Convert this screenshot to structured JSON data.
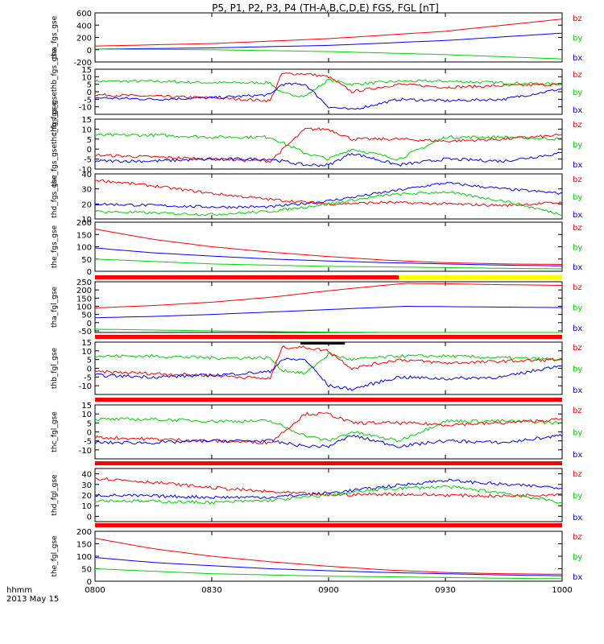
{
  "chart_data": {
    "type": "line",
    "title": "P5, P1, P2, P3, P4 (TH-A,B,C,D,E) FGS, FGL [nT]",
    "x_tick_labels": [
      "0800",
      "0830",
      "0900",
      "0930",
      "1000"
    ],
    "x_ticks_hours": [
      8.0,
      8.5,
      9.0,
      9.5,
      10.0
    ],
    "xlim_hours": [
      8.0,
      10.0
    ],
    "time_label": "hhmm",
    "date_label": "2013 May 15",
    "colors": {
      "bx": "#0000ff",
      "by": "#00d400",
      "bz": "#ff0000"
    },
    "component_labels": [
      "bz",
      "by",
      "bx"
    ],
    "panels": [
      {
        "ylabel": "tha_fgs_gse",
        "ylim": [
          -200,
          600
        ],
        "yticks": [
          -200,
          0,
          200,
          400,
          600
        ],
        "series": [
          {
            "name": "bz",
            "x": [
              8.0,
              8.5,
              9.0,
              9.5,
              10.0
            ],
            "values": [
              60,
              100,
              180,
              300,
              500
            ]
          },
          {
            "name": "bx",
            "x": [
              8.0,
              8.5,
              9.0,
              9.5,
              10.0
            ],
            "values": [
              10,
              30,
              70,
              150,
              270
            ]
          },
          {
            "name": "by",
            "x": [
              8.0,
              8.5,
              9.0,
              9.5,
              10.0
            ],
            "values": [
              10,
              0,
              -30,
              -80,
              -150
            ]
          }
        ]
      },
      {
        "ylabel": "thb_fgs_gsethb_fgs_gse",
        "ylim": [
          -15,
          15
        ],
        "yticks": [
          -10,
          -5,
          0,
          5,
          10,
          15
        ],
        "series": [
          {
            "name": "by",
            "x": [
              8.0,
              8.25,
              8.5,
              8.75,
              8.8,
              8.9,
              9.0,
              9.1,
              9.3,
              9.5,
              9.75,
              10.0
            ],
            "values": [
              7,
              7,
              6,
              6,
              -1,
              -3,
              8,
              5,
              7,
              7,
              6,
              5
            ]
          },
          {
            "name": "bz",
            "x": [
              8.0,
              8.25,
              8.5,
              8.75,
              8.8,
              8.9,
              9.0,
              9.1,
              9.3,
              9.5,
              9.75,
              10.0
            ],
            "values": [
              -2,
              -3,
              -4,
              -6,
              12,
              12,
              10,
              0,
              5,
              3,
              4,
              5
            ]
          },
          {
            "name": "bx",
            "x": [
              8.0,
              8.25,
              8.5,
              8.75,
              8.8,
              8.9,
              9.0,
              9.1,
              9.3,
              9.5,
              9.75,
              10.0
            ],
            "values": [
              -4,
              -5,
              -4,
              -2,
              5,
              5,
              -10,
              -12,
              -5,
              -6,
              -5,
              2
            ]
          }
        ]
      },
      {
        "ylabel": "thc_fgs_gsethc_fgs_gse",
        "ylim": [
          -10,
          15
        ],
        "yticks": [
          -10,
          -5,
          0,
          5,
          10,
          15
        ],
        "series": [
          {
            "name": "by",
            "x": [
              8.0,
              8.25,
              8.5,
              8.75,
              8.9,
              9.0,
              9.1,
              9.3,
              9.5,
              9.75,
              10.0
            ],
            "values": [
              7,
              7,
              6,
              6,
              -2,
              -5,
              0,
              -5,
              6,
              6,
              5
            ]
          },
          {
            "name": "bz",
            "x": [
              8.0,
              8.25,
              8.5,
              8.75,
              8.9,
              9.0,
              9.1,
              9.3,
              9.5,
              9.75,
              10.0
            ],
            "values": [
              -3,
              -4,
              -5,
              -6,
              10,
              10,
              5,
              5,
              4,
              5,
              7
            ]
          },
          {
            "name": "bx",
            "x": [
              8.0,
              8.25,
              8.5,
              8.75,
              8.9,
              9.0,
              9.1,
              9.3,
              9.5,
              9.75,
              10.0
            ],
            "values": [
              -6,
              -6,
              -5,
              -5,
              -8,
              -8,
              -2,
              -8,
              -5,
              -6,
              -2
            ]
          }
        ]
      },
      {
        "ylabel": "thd_fgs_gse",
        "ylim": [
          10,
          40
        ],
        "yticks": [
          10,
          20,
          30,
          40
        ],
        "series": [
          {
            "name": "bx",
            "x": [
              8.0,
              8.25,
              8.5,
              8.75,
              9.0,
              9.25,
              9.5,
              9.75,
              10.0
            ],
            "values": [
              20,
              19,
              18,
              18,
              22,
              28,
              34,
              30,
              27
            ]
          },
          {
            "name": "bz",
            "x": [
              8.0,
              8.25,
              8.5,
              8.75,
              9.0,
              9.25,
              9.5,
              9.75,
              10.0
            ],
            "values": [
              36,
              32,
              27,
              23,
              20,
              21,
              20,
              19,
              21
            ]
          },
          {
            "name": "by",
            "x": [
              8.0,
              8.25,
              8.5,
              8.75,
              9.0,
              9.25,
              9.5,
              9.75,
              10.0
            ],
            "values": [
              15,
              14,
              13,
              15,
              20,
              26,
              28,
              22,
              13
            ]
          }
        ]
      },
      {
        "ylabel": "the_fgs_gse",
        "ylim": [
          0,
          200
        ],
        "yticks": [
          0,
          50,
          100,
          150,
          200
        ],
        "series": [
          {
            "name": "bz",
            "x": [
              8.0,
              8.25,
              8.5,
              8.75,
              9.0,
              9.25,
              9.5,
              9.75,
              10.0
            ],
            "values": [
              172,
              130,
              100,
              78,
              60,
              45,
              35,
              30,
              28
            ]
          },
          {
            "name": "bx",
            "x": [
              8.0,
              8.25,
              8.5,
              8.75,
              9.0,
              9.25,
              9.5,
              9.75,
              10.0
            ],
            "values": [
              95,
              75,
              62,
              50,
              42,
              35,
              30,
              25,
              22
            ]
          },
          {
            "name": "by",
            "x": [
              8.0,
              8.25,
              8.5,
              8.75,
              9.0,
              9.25,
              9.5,
              9.75,
              10.0
            ],
            "values": [
              50,
              40,
              30,
              25,
              20,
              18,
              15,
              12,
              10
            ]
          }
        ]
      },
      {
        "ylabel": "tha_fgl_gse",
        "ylim": [
          -60,
          250
        ],
        "yticks": [
          -50,
          0,
          50,
          100,
          150,
          200,
          250
        ],
        "series": [
          {
            "name": "bz",
            "x": [
              8.0,
              8.25,
              8.5,
              8.75,
              9.0,
              9.25,
              9.33,
              9.5,
              9.75,
              10.0
            ],
            "values": [
              90,
              105,
              125,
              155,
              195,
              230,
              240,
              238,
              232,
              228
            ]
          },
          {
            "name": "bx",
            "x": [
              8.0,
              8.25,
              8.5,
              8.75,
              9.0,
              9.25,
              9.33,
              9.5,
              9.75,
              10.0
            ],
            "values": [
              30,
              38,
              50,
              65,
              80,
              95,
              100,
              98,
              95,
              92
            ]
          },
          {
            "name": "by",
            "x": [
              8.0,
              8.25,
              8.5,
              8.75,
              9.0,
              9.25,
              9.33,
              9.5,
              9.75,
              10.0
            ],
            "values": [
              -40,
              -45,
              -50,
              -55,
              -58,
              -60,
              -60,
              -60,
              -60,
              -60
            ]
          }
        ]
      },
      {
        "ylabel": "thb_fgl_gse",
        "ylim": [
          -15,
          15
        ],
        "yticks": [
          -10,
          -5,
          0,
          5,
          10,
          15
        ],
        "series": [
          {
            "name": "by",
            "x": [
              8.0,
              8.25,
              8.5,
              8.75,
              8.8,
              8.9,
              9.0,
              9.1,
              9.3,
              9.5,
              9.75,
              10.0
            ],
            "values": [
              7,
              7,
              6,
              6,
              -1,
              -3,
              8,
              5,
              7,
              7,
              6,
              5
            ]
          },
          {
            "name": "bz",
            "x": [
              8.0,
              8.25,
              8.5,
              8.75,
              8.8,
              8.9,
              9.0,
              9.1,
              9.3,
              9.5,
              9.75,
              10.0
            ],
            "values": [
              -2,
              -3,
              -4,
              -6,
              12,
              12,
              10,
              0,
              5,
              3,
              4,
              5
            ]
          },
          {
            "name": "bx",
            "x": [
              8.0,
              8.25,
              8.5,
              8.75,
              8.8,
              8.9,
              9.0,
              9.1,
              9.3,
              9.5,
              9.75,
              10.0
            ],
            "values": [
              -4,
              -5,
              -4,
              -2,
              5,
              5,
              -10,
              -12,
              -5,
              -6,
              -5,
              2
            ]
          }
        ]
      },
      {
        "ylabel": "thc_fgl_gse",
        "ylim": [
          -15,
          15
        ],
        "yticks": [
          -10,
          -5,
          0,
          5,
          10,
          15
        ],
        "series": [
          {
            "name": "by",
            "x": [
              8.0,
              8.25,
              8.5,
              8.75,
              8.9,
              9.0,
              9.1,
              9.3,
              9.5,
              9.75,
              10.0
            ],
            "values": [
              7,
              7,
              6,
              6,
              -2,
              -5,
              0,
              -5,
              6,
              6,
              5
            ]
          },
          {
            "name": "bz",
            "x": [
              8.0,
              8.25,
              8.5,
              8.75,
              8.9,
              9.0,
              9.1,
              9.3,
              9.5,
              9.75,
              10.0
            ],
            "values": [
              -3,
              -4,
              -5,
              -6,
              10,
              10,
              5,
              5,
              4,
              5,
              7
            ]
          },
          {
            "name": "bx",
            "x": [
              8.0,
              8.25,
              8.5,
              8.75,
              8.9,
              9.0,
              9.1,
              9.3,
              9.5,
              9.75,
              10.0
            ],
            "values": [
              -6,
              -6,
              -5,
              -5,
              -8,
              -8,
              -2,
              -8,
              -5,
              -6,
              -2
            ]
          }
        ]
      },
      {
        "ylabel": "thd_fgl_gse",
        "ylim": [
          -5,
          45
        ],
        "yticks": [
          0,
          10,
          20,
          30,
          40
        ],
        "series": [
          {
            "name": "bx",
            "x": [
              8.0,
              8.25,
              8.5,
              8.75,
              9.0,
              9.25,
              9.5,
              9.75,
              10.0
            ],
            "values": [
              20,
              19,
              18,
              18,
              22,
              28,
              34,
              30,
              27
            ]
          },
          {
            "name": "bz",
            "x": [
              8.0,
              8.25,
              8.5,
              8.75,
              9.0,
              9.25,
              9.5,
              9.75,
              10.0
            ],
            "values": [
              36,
              32,
              27,
              23,
              20,
              21,
              20,
              19,
              21
            ]
          },
          {
            "name": "by",
            "x": [
              8.0,
              8.25,
              8.5,
              8.75,
              9.0,
              9.25,
              9.5,
              9.75,
              10.0
            ],
            "values": [
              15,
              14,
              13,
              15,
              20,
              26,
              28,
              22,
              13
            ]
          }
        ]
      },
      {
        "ylabel": "the_fgl_gse",
        "ylim": [
          0,
          200
        ],
        "yticks": [
          0,
          50,
          100,
          150,
          200
        ],
        "series": [
          {
            "name": "bz",
            "x": [
              8.0,
              8.25,
              8.5,
              8.75,
              9.0,
              9.25,
              9.5,
              9.75,
              10.0
            ],
            "values": [
              172,
              130,
              100,
              78,
              60,
              45,
              35,
              30,
              28
            ]
          },
          {
            "name": "bx",
            "x": [
              8.0,
              8.25,
              8.5,
              8.75,
              9.0,
              9.25,
              9.5,
              9.75,
              10.0
            ],
            "values": [
              95,
              75,
              62,
              50,
              42,
              35,
              30,
              25,
              22
            ]
          },
          {
            "name": "by",
            "x": [
              8.0,
              8.25,
              8.5,
              8.75,
              9.0,
              9.25,
              9.5,
              9.75,
              10.0
            ],
            "values": [
              50,
              40,
              30,
              25,
              20,
              18,
              15,
              12,
              10
            ]
          }
        ]
      }
    ],
    "status_bars": [
      {
        "after_panel": 4,
        "segments": [
          {
            "from": 8.0,
            "to": 9.3,
            "color": "#ff0000"
          },
          {
            "from": 9.3,
            "to": 10.0,
            "color": "#ffff00"
          }
        ]
      },
      {
        "after_panel": 5,
        "segments": [
          {
            "from": 8.0,
            "to": 10.0,
            "color": "#ff0000"
          }
        ]
      },
      {
        "after_panel": 6,
        "segments": [
          {
            "from": 8.0,
            "to": 10.0,
            "color": "#ff0000"
          }
        ]
      },
      {
        "after_panel": 7,
        "segments": [
          {
            "from": 8.0,
            "to": 10.0,
            "color": "#ff0000"
          }
        ]
      },
      {
        "after_panel": 8,
        "segments": [
          {
            "from": 8.0,
            "to": 10.0,
            "color": "#ff0000"
          }
        ]
      }
    ],
    "highlight_bar": {
      "panel": 6,
      "from": 8.88,
      "to": 9.07,
      "color": "#000000"
    }
  }
}
